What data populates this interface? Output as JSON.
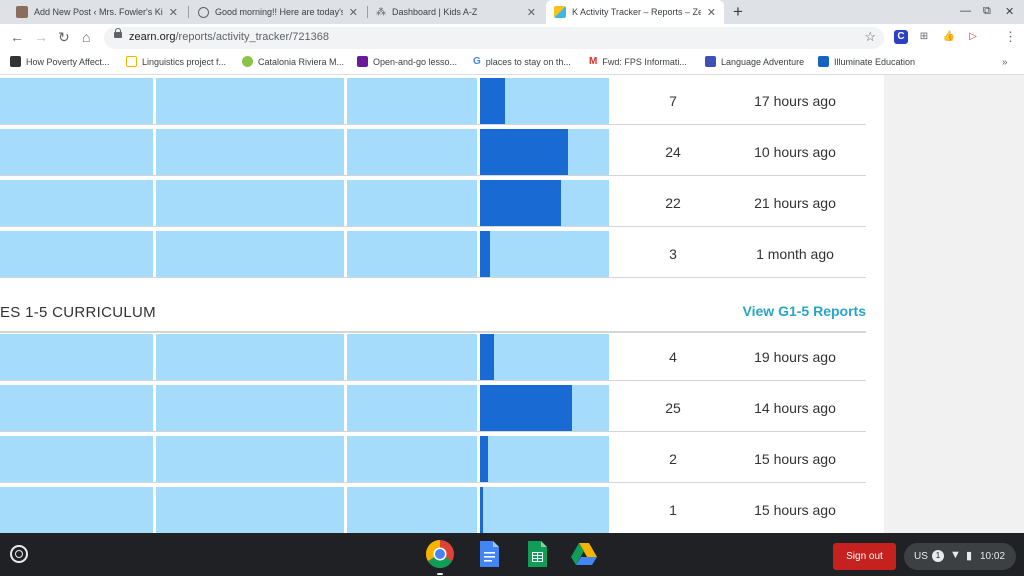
{
  "browser": {
    "tabs": [
      {
        "title": "Add New Post ‹ Mrs. Fowler's Ki",
        "active": false
      },
      {
        "title": "Good morning!! Here are today's",
        "active": false
      },
      {
        "title": "Dashboard | Kids A-Z",
        "active": false
      },
      {
        "title": "K Activity Tracker – Reports – Ze",
        "active": true
      }
    ],
    "new_tab": "+",
    "url_host": "zearn.org",
    "url_path": "/reports/activity_tracker/721368",
    "bookmarks": [
      "How Poverty Affect...",
      "Linguistics project f...",
      "Catalonia Riviera M...",
      "Open-and-go lesso...",
      "places to stay on th...",
      "Fwd: FPS Informati...",
      "Language Adventure",
      "Illuminate Education"
    ]
  },
  "report": {
    "kindergarten_rows": [
      {
        "count": "7",
        "last_active": "17 hours ago",
        "progress": 0.19
      },
      {
        "count": "24",
        "last_active": "10 hours ago",
        "progress": 0.68
      },
      {
        "count": "22",
        "last_active": "21 hours ago",
        "progress": 0.63
      },
      {
        "count": "3",
        "last_active": "1 month ago",
        "progress": 0.08
      }
    ],
    "section_title": "ES 1-5 CURRICULUM",
    "view_link": "View G1-5 Reports",
    "grades_rows": [
      {
        "count": "4",
        "last_active": "19 hours ago",
        "progress": 0.11
      },
      {
        "count": "25",
        "last_active": "14 hours ago",
        "progress": 0.71
      },
      {
        "count": "2",
        "last_active": "15 hours ago",
        "progress": 0.06
      },
      {
        "count": "1",
        "last_active": "15 hours ago",
        "progress": 0.02
      }
    ]
  },
  "shelf": {
    "sign_out": "Sign out",
    "locale": "US",
    "notification_count": "1",
    "time": "10:02"
  },
  "colors": {
    "cell_bg": "#a5dcfb",
    "progress_fill": "#1a6ad4",
    "link": "#2aa4c8",
    "sign_out_bg": "#c5221f"
  }
}
